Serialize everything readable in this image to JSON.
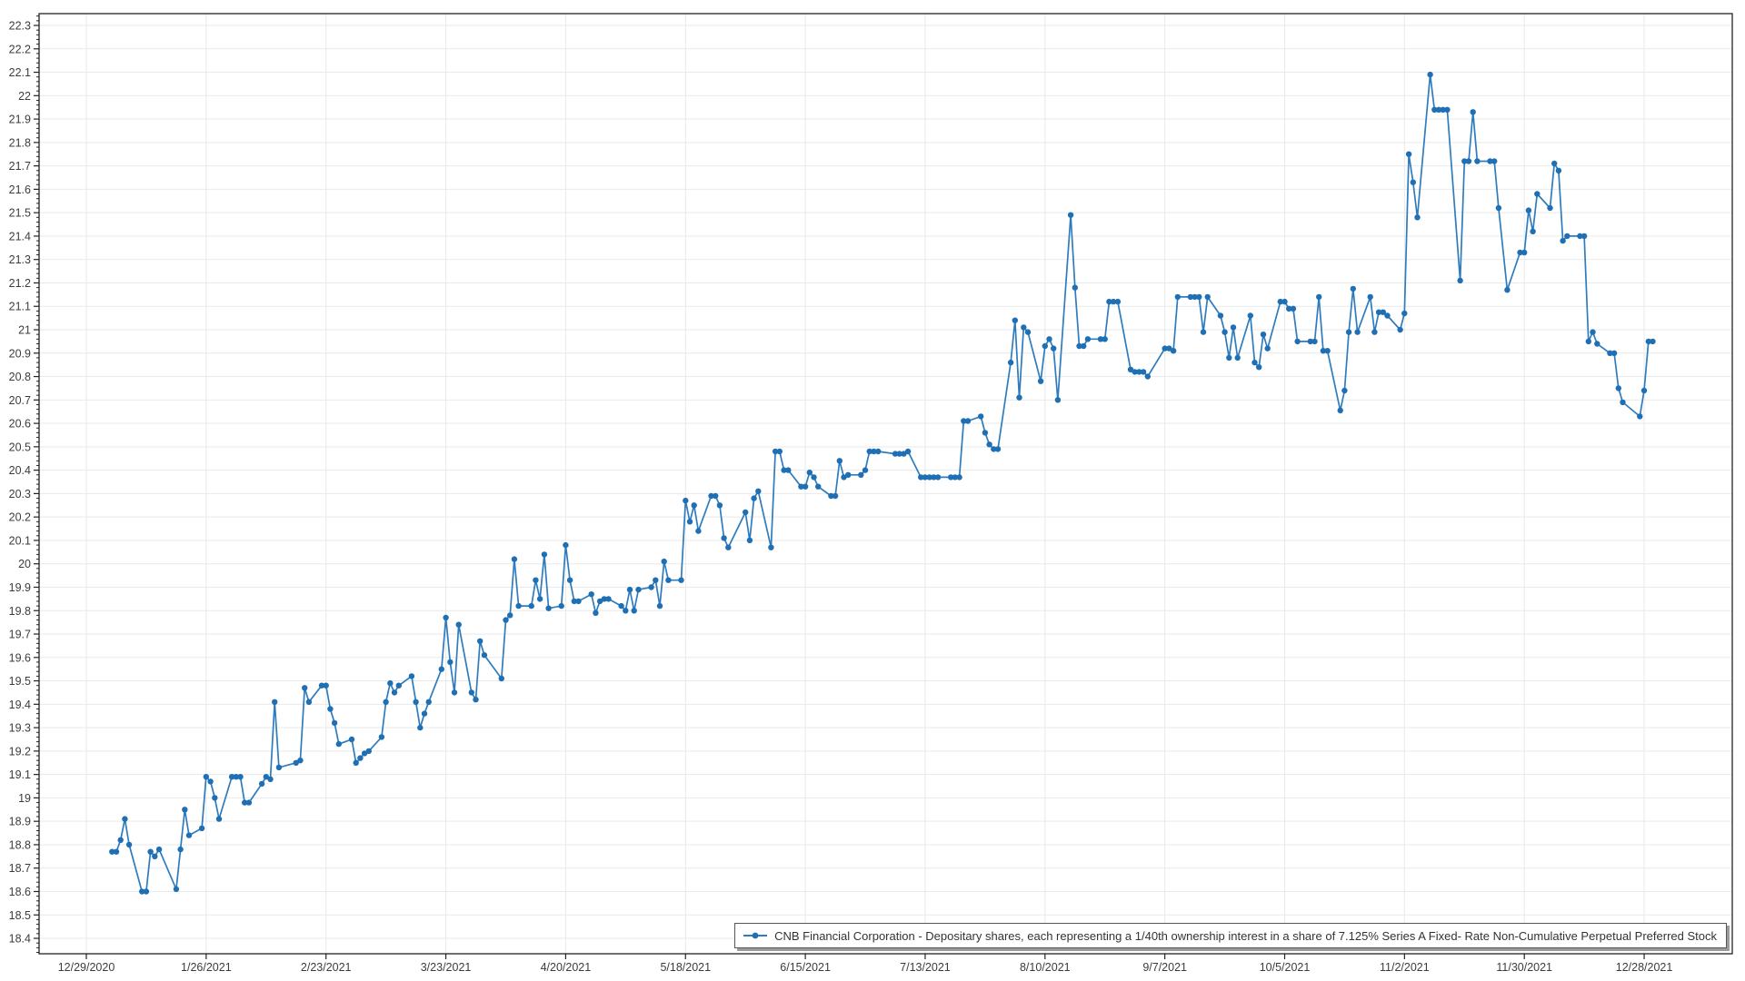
{
  "page": {
    "background": "#ffffff"
  },
  "legend": {
    "label": "CNB Financial Corporation - Depositary shares, each representing a 1/40th ownership interest in a share of 7.125% Series A Fixed- Rate Non-Cumulative Perpetual Preferred Stock"
  },
  "colors": {
    "line": "#2e7cbe",
    "marker": "#1f6fb5",
    "grid": "#e9e9e9",
    "axis": "#222222",
    "label": "#3c3c3c",
    "legend_border": "#565656",
    "legend_shadow": "#9b9b9b"
  },
  "chart_data": {
    "type": "line",
    "title": "",
    "xlabel": "",
    "ylabel": "",
    "grid": true,
    "legend_position": "bottom-right",
    "y_axis": {
      "min_label": 18.4,
      "max_label": 22.3,
      "major_step": 0.1,
      "minor_step": 0.02,
      "axis_min": 18.34,
      "axis_max": 22.35
    },
    "x_axis": {
      "start_label_date": "12/29/2020",
      "tick_interval_days": 28,
      "tick_labels": [
        "12/29/2020",
        "1/26/2021",
        "2/23/2021",
        "3/23/2021",
        "4/20/2021",
        "5/18/2021",
        "6/15/2021",
        "7/13/2021",
        "8/10/2021",
        "9/7/2021",
        "10/5/2021",
        "11/2/2021",
        "11/30/2021",
        "12/28/2021"
      ]
    },
    "series": [
      {
        "name": "CNB Financial Corporation - Depositary shares, each representing a 1/40th ownership interest in a share of 7.125% Series A Fixed- Rate Non-Cumulative Perpetual Preferred Stock",
        "points": [
          [
            "1/4/2021",
            18.77
          ],
          [
            "1/5/2021",
            18.77
          ],
          [
            "1/6/2021",
            18.82
          ],
          [
            "1/7/2021",
            18.91
          ],
          [
            "1/8/2021",
            18.8
          ],
          [
            "1/11/2021",
            18.6
          ],
          [
            "1/12/2021",
            18.6
          ],
          [
            "1/13/2021",
            18.77
          ],
          [
            "1/14/2021",
            18.75
          ],
          [
            "1/15/2021",
            18.78
          ],
          [
            "1/19/2021",
            18.61
          ],
          [
            "1/20/2021",
            18.78
          ],
          [
            "1/21/2021",
            18.95
          ],
          [
            "1/22/2021",
            18.84
          ],
          [
            "1/25/2021",
            18.87
          ],
          [
            "1/26/2021",
            19.09
          ],
          [
            "1/27/2021",
            19.07
          ],
          [
            "1/28/2021",
            19.0
          ],
          [
            "1/29/2021",
            18.91
          ],
          [
            "2/1/2021",
            19.09
          ],
          [
            "2/2/2021",
            19.09
          ],
          [
            "2/3/2021",
            19.09
          ],
          [
            "2/4/2021",
            18.98
          ],
          [
            "2/5/2021",
            18.98
          ],
          [
            "2/8/2021",
            19.06
          ],
          [
            "2/9/2021",
            19.09
          ],
          [
            "2/10/2021",
            19.08
          ],
          [
            "2/11/2021",
            19.41
          ],
          [
            "2/12/2021",
            19.13
          ],
          [
            "2/16/2021",
            19.15
          ],
          [
            "2/17/2021",
            19.16
          ],
          [
            "2/18/2021",
            19.47
          ],
          [
            "2/19/2021",
            19.41
          ],
          [
            "2/22/2021",
            19.48
          ],
          [
            "2/23/2021",
            19.48
          ],
          [
            "2/24/2021",
            19.38
          ],
          [
            "2/25/2021",
            19.32
          ],
          [
            "2/26/2021",
            19.23
          ],
          [
            "3/1/2021",
            19.25
          ],
          [
            "3/2/2021",
            19.15
          ],
          [
            "3/3/2021",
            19.17
          ],
          [
            "3/4/2021",
            19.19
          ],
          [
            "3/5/2021",
            19.2
          ],
          [
            "3/8/2021",
            19.26
          ],
          [
            "3/9/2021",
            19.41
          ],
          [
            "3/10/2021",
            19.49
          ],
          [
            "3/11/2021",
            19.45
          ],
          [
            "3/12/2021",
            19.48
          ],
          [
            "3/15/2021",
            19.52
          ],
          [
            "3/16/2021",
            19.41
          ],
          [
            "3/17/2021",
            19.3
          ],
          [
            "3/18/2021",
            19.36
          ],
          [
            "3/19/2021",
            19.41
          ],
          [
            "3/22/2021",
            19.55
          ],
          [
            "3/23/2021",
            19.77
          ],
          [
            "3/24/2021",
            19.58
          ],
          [
            "3/25/2021",
            19.45
          ],
          [
            "3/26/2021",
            19.74
          ],
          [
            "3/29/2021",
            19.45
          ],
          [
            "3/30/2021",
            19.42
          ],
          [
            "3/31/2021",
            19.67
          ],
          [
            "4/1/2021",
            19.61
          ],
          [
            "4/5/2021",
            19.51
          ],
          [
            "4/6/2021",
            19.76
          ],
          [
            "4/7/2021",
            19.78
          ],
          [
            "4/8/2021",
            20.02
          ],
          [
            "4/9/2021",
            19.82
          ],
          [
            "4/12/2021",
            19.82
          ],
          [
            "4/13/2021",
            19.93
          ],
          [
            "4/14/2021",
            19.85
          ],
          [
            "4/15/2021",
            20.04
          ],
          [
            "4/16/2021",
            19.81
          ],
          [
            "4/19/2021",
            19.82
          ],
          [
            "4/20/2021",
            20.08
          ],
          [
            "4/21/2021",
            19.93
          ],
          [
            "4/22/2021",
            19.84
          ],
          [
            "4/23/2021",
            19.84
          ],
          [
            "4/26/2021",
            19.87
          ],
          [
            "4/27/2021",
            19.79
          ],
          [
            "4/28/2021",
            19.84
          ],
          [
            "4/29/2021",
            19.85
          ],
          [
            "4/30/2021",
            19.85
          ],
          [
            "5/3/2021",
            19.82
          ],
          [
            "5/4/2021",
            19.8
          ],
          [
            "5/5/2021",
            19.89
          ],
          [
            "5/6/2021",
            19.8
          ],
          [
            "5/7/2021",
            19.89
          ],
          [
            "5/10/2021",
            19.9
          ],
          [
            "5/11/2021",
            19.93
          ],
          [
            "5/12/2021",
            19.82
          ],
          [
            "5/13/2021",
            20.01
          ],
          [
            "5/14/2021",
            19.93
          ],
          [
            "5/17/2021",
            19.93
          ],
          [
            "5/18/2021",
            20.27
          ],
          [
            "5/19/2021",
            20.18
          ],
          [
            "5/20/2021",
            20.25
          ],
          [
            "5/21/2021",
            20.14
          ],
          [
            "5/24/2021",
            20.29
          ],
          [
            "5/25/2021",
            20.29
          ],
          [
            "5/26/2021",
            20.25
          ],
          [
            "5/27/2021",
            20.11
          ],
          [
            "5/28/2021",
            20.07
          ],
          [
            "6/1/2021",
            20.22
          ],
          [
            "6/2/2021",
            20.1
          ],
          [
            "6/3/2021",
            20.28
          ],
          [
            "6/4/2021",
            20.31
          ],
          [
            "6/7/2021",
            20.07
          ],
          [
            "6/8/2021",
            20.48
          ],
          [
            "6/9/2021",
            20.48
          ],
          [
            "6/10/2021",
            20.4
          ],
          [
            "6/11/2021",
            20.4
          ],
          [
            "6/14/2021",
            20.33
          ],
          [
            "6/15/2021",
            20.33
          ],
          [
            "6/16/2021",
            20.39
          ],
          [
            "6/17/2021",
            20.37
          ],
          [
            "6/18/2021",
            20.33
          ],
          [
            "6/21/2021",
            20.29
          ],
          [
            "6/22/2021",
            20.29
          ],
          [
            "6/23/2021",
            20.44
          ],
          [
            "6/24/2021",
            20.37
          ],
          [
            "6/25/2021",
            20.38
          ],
          [
            "6/28/2021",
            20.38
          ],
          [
            "6/29/2021",
            20.4
          ],
          [
            "6/30/2021",
            20.48
          ],
          [
            "7/1/2021",
            20.48
          ],
          [
            "7/2/2021",
            20.48
          ],
          [
            "7/6/2021",
            20.47
          ],
          [
            "7/7/2021",
            20.47
          ],
          [
            "7/8/2021",
            20.47
          ],
          [
            "7/9/2021",
            20.48
          ],
          [
            "7/12/2021",
            20.37
          ],
          [
            "7/13/2021",
            20.37
          ],
          [
            "7/14/2021",
            20.37
          ],
          [
            "7/15/2021",
            20.37
          ],
          [
            "7/16/2021",
            20.37
          ],
          [
            "7/19/2021",
            20.37
          ],
          [
            "7/20/2021",
            20.37
          ],
          [
            "7/21/2021",
            20.37
          ],
          [
            "7/22/2021",
            20.61
          ],
          [
            "7/23/2021",
            20.61
          ],
          [
            "7/26/2021",
            20.63
          ],
          [
            "7/27/2021",
            20.56
          ],
          [
            "7/28/2021",
            20.51
          ],
          [
            "7/29/2021",
            20.49
          ],
          [
            "7/30/2021",
            20.49
          ],
          [
            "8/2/2021",
            20.86
          ],
          [
            "8/3/2021",
            21.04
          ],
          [
            "8/4/2021",
            20.71
          ],
          [
            "8/5/2021",
            21.01
          ],
          [
            "8/6/2021",
            20.99
          ],
          [
            "8/9/2021",
            20.78
          ],
          [
            "8/10/2021",
            20.93
          ],
          [
            "8/11/2021",
            20.96
          ],
          [
            "8/12/2021",
            20.92
          ],
          [
            "8/13/2021",
            20.7
          ],
          [
            "8/16/2021",
            21.49
          ],
          [
            "8/17/2021",
            21.18
          ],
          [
            "8/18/2021",
            20.93
          ],
          [
            "8/19/2021",
            20.93
          ],
          [
            "8/20/2021",
            20.96
          ],
          [
            "8/23/2021",
            20.96
          ],
          [
            "8/24/2021",
            20.96
          ],
          [
            "8/25/2021",
            21.12
          ],
          [
            "8/26/2021",
            21.12
          ],
          [
            "8/27/2021",
            21.12
          ],
          [
            "8/30/2021",
            20.83
          ],
          [
            "8/31/2021",
            20.82
          ],
          [
            "9/1/2021",
            20.82
          ],
          [
            "9/2/2021",
            20.82
          ],
          [
            "9/3/2021",
            20.8
          ],
          [
            "9/7/2021",
            20.92
          ],
          [
            "9/8/2021",
            20.92
          ],
          [
            "9/9/2021",
            20.91
          ],
          [
            "9/10/2021",
            21.14
          ],
          [
            "9/13/2021",
            21.14
          ],
          [
            "9/14/2021",
            21.14
          ],
          [
            "9/15/2021",
            21.14
          ],
          [
            "9/16/2021",
            20.99
          ],
          [
            "9/17/2021",
            21.14
          ],
          [
            "9/20/2021",
            21.06
          ],
          [
            "9/21/2021",
            20.99
          ],
          [
            "9/22/2021",
            20.88
          ],
          [
            "9/23/2021",
            21.01
          ],
          [
            "9/24/2021",
            20.88
          ],
          [
            "9/27/2021",
            21.06
          ],
          [
            "9/28/2021",
            20.86
          ],
          [
            "9/29/2021",
            20.84
          ],
          [
            "9/30/2021",
            20.98
          ],
          [
            "10/1/2021",
            20.92
          ],
          [
            "10/4/2021",
            21.12
          ],
          [
            "10/5/2021",
            21.12
          ],
          [
            "10/6/2021",
            21.09
          ],
          [
            "10/7/2021",
            21.09
          ],
          [
            "10/8/2021",
            20.95
          ],
          [
            "10/11/2021",
            20.95
          ],
          [
            "10/12/2021",
            20.95
          ],
          [
            "10/13/2021",
            21.14
          ],
          [
            "10/14/2021",
            20.91
          ],
          [
            "10/15/2021",
            20.91
          ],
          [
            "10/18/2021",
            20.655
          ],
          [
            "10/19/2021",
            20.74
          ],
          [
            "10/20/2021",
            20.99
          ],
          [
            "10/21/2021",
            21.175
          ],
          [
            "10/22/2021",
            20.99
          ],
          [
            "10/25/2021",
            21.14
          ],
          [
            "10/26/2021",
            20.99
          ],
          [
            "10/27/2021",
            21.075
          ],
          [
            "10/28/2021",
            21.075
          ],
          [
            "10/29/2021",
            21.06
          ],
          [
            "11/1/2021",
            21.0
          ],
          [
            "11/2/2021",
            21.07
          ],
          [
            "11/3/2021",
            21.75
          ],
          [
            "11/4/2021",
            21.63
          ],
          [
            "11/5/2021",
            21.48
          ],
          [
            "11/8/2021",
            22.09
          ],
          [
            "11/9/2021",
            21.94
          ],
          [
            "11/10/2021",
            21.94
          ],
          [
            "11/11/2021",
            21.94
          ],
          [
            "11/12/2021",
            21.94
          ],
          [
            "11/15/2021",
            21.21
          ],
          [
            "11/16/2021",
            21.72
          ],
          [
            "11/17/2021",
            21.72
          ],
          [
            "11/18/2021",
            21.93
          ],
          [
            "11/19/2021",
            21.72
          ],
          [
            "11/22/2021",
            21.72
          ],
          [
            "11/23/2021",
            21.72
          ],
          [
            "11/24/2021",
            21.52
          ],
          [
            "11/26/2021",
            21.17
          ],
          [
            "11/29/2021",
            21.33
          ],
          [
            "11/30/2021",
            21.33
          ],
          [
            "12/1/2021",
            21.51
          ],
          [
            "12/2/2021",
            21.42
          ],
          [
            "12/3/2021",
            21.58
          ],
          [
            "12/6/2021",
            21.52
          ],
          [
            "12/7/2021",
            21.71
          ],
          [
            "12/8/2021",
            21.68
          ],
          [
            "12/9/2021",
            21.38
          ],
          [
            "12/10/2021",
            21.4
          ],
          [
            "12/13/2021",
            21.4
          ],
          [
            "12/14/2021",
            21.4
          ],
          [
            "12/15/2021",
            20.95
          ],
          [
            "12/16/2021",
            20.99
          ],
          [
            "12/17/2021",
            20.94
          ],
          [
            "12/20/2021",
            20.9
          ],
          [
            "12/21/2021",
            20.9
          ],
          [
            "12/22/2021",
            20.75
          ],
          [
            "12/23/2021",
            20.69
          ],
          [
            "12/27/2021",
            20.63
          ],
          [
            "12/28/2021",
            20.74
          ],
          [
            "12/29/2021",
            20.95
          ],
          [
            "12/30/2021",
            20.95
          ]
        ]
      }
    ]
  }
}
